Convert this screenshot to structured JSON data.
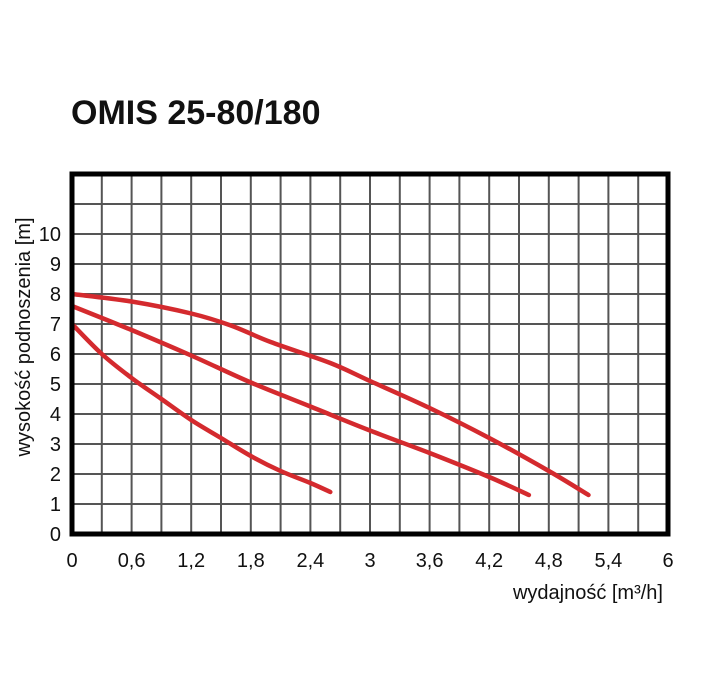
{
  "chart_data": {
    "type": "line",
    "title": "OMIS 25-80/180",
    "xlabel": "wydajność [m³/h]",
    "ylabel": "wysokość podnoszenia [m]",
    "xlim": [
      0,
      6
    ],
    "ylim": [
      0,
      12
    ],
    "x_ticks": [
      "0",
      "0,6",
      "1,2",
      "1,8",
      "2,4",
      "3",
      "3,6",
      "4,2",
      "4,8",
      "5,4",
      "6"
    ],
    "x_tick_values": [
      0,
      0.6,
      1.2,
      1.8,
      2.4,
      3,
      3.6,
      4.2,
      4.8,
      5.4,
      6
    ],
    "y_ticks": [
      "0",
      "1",
      "2",
      "3",
      "4",
      "5",
      "6",
      "7",
      "8",
      "9",
      "10"
    ],
    "y_tick_values": [
      0,
      1,
      2,
      3,
      4,
      5,
      6,
      7,
      8,
      9,
      10
    ],
    "grid": true,
    "grid_x_step": 0.3,
    "grid_y_step": 1,
    "line_color": "#d42a2e",
    "grid_color": "#555555",
    "series": [
      {
        "x": [
          0,
          0.3,
          0.6,
          0.9,
          1.2,
          1.5,
          1.8,
          2.1,
          2.4,
          2.6
        ],
        "y": [
          7.0,
          6.0,
          5.2,
          4.5,
          3.8,
          3.2,
          2.6,
          2.1,
          1.7,
          1.4
        ]
      },
      {
        "x": [
          0,
          0.6,
          1.2,
          1.8,
          2.4,
          3.0,
          3.6,
          4.2,
          4.6
        ],
        "y": [
          7.6,
          6.8,
          5.95,
          5.05,
          4.25,
          3.45,
          2.7,
          1.9,
          1.3
        ]
      },
      {
        "x": [
          0,
          0.6,
          1.2,
          1.6,
          2.0,
          2.6,
          3.0,
          3.6,
          4.2,
          4.8,
          5.2
        ],
        "y": [
          8.0,
          7.75,
          7.35,
          6.95,
          6.4,
          5.7,
          5.1,
          4.2,
          3.2,
          2.1,
          1.3
        ]
      }
    ]
  }
}
